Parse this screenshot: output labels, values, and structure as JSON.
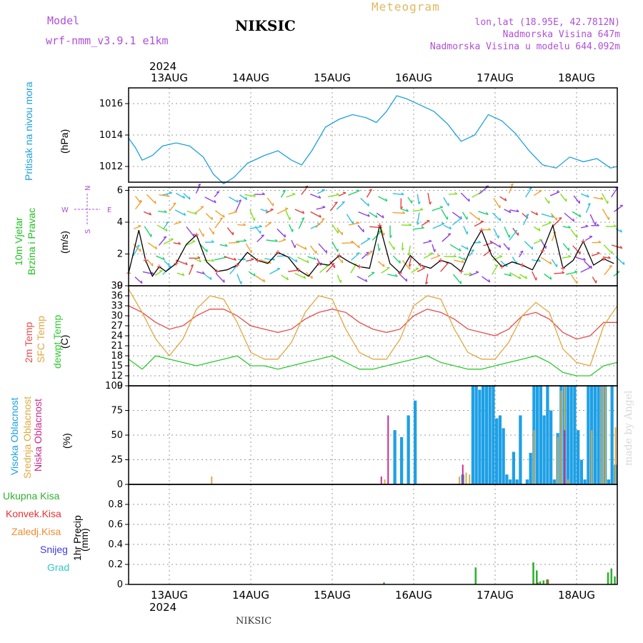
{
  "header": {
    "model_label": "Model",
    "model_name": "wrf-nmm_v3.9.1 e1km",
    "title": "NIKSIC",
    "product": "Meteogram",
    "coords": "lon,lat (18.95E, 42.7812N)",
    "elevation": "Nadmorska Visina 647m",
    "model_elevation": "Nadmorska Visina u modelu 644.092m"
  },
  "footer": {
    "station": "NIKSIC",
    "signature": "made by Angel"
  },
  "colors": {
    "pressure": "#1ea0dc",
    "temp2m": "#e84b4b",
    "sfc_temp": "#e0a840",
    "dewpoint": "#30c830",
    "high_cloud": "#1ea0e6",
    "mid_cloud": "#e0a840",
    "low_cloud": "#c8288c",
    "total_precip": "#30b030",
    "conv_precip": "#e83232",
    "frozen_precip": "#f08c30",
    "snow": "#3c3ce0",
    "hail": "#30c8c8",
    "wind_label": "#20c020",
    "wind_compass": "#b04fd6"
  },
  "time_axis": {
    "year": "2024",
    "days": [
      "13AUG",
      "14AUG",
      "15AUG",
      "16AUG",
      "17AUG",
      "18AUG"
    ],
    "start": "12 Aug 12:00",
    "end": "18 Aug 12:00"
  },
  "chart_data": [
    {
      "type": "line",
      "id": "pressure",
      "ylabel": "Pritisak na nivou mora",
      "unit": "(hPa)",
      "ylim": [
        1011.0,
        1017.0
      ],
      "yticks": [
        1012,
        1014,
        1016
      ],
      "x_hours": [
        0,
        2,
        4,
        7,
        10,
        14,
        18,
        22,
        25,
        28,
        31,
        35,
        40,
        44,
        48,
        51,
        54,
        58,
        62,
        66,
        70,
        73,
        76,
        79,
        82,
        86,
        90,
        94,
        98,
        102,
        106,
        110,
        114,
        118,
        122,
        126,
        130,
        134,
        138,
        142,
        144
      ],
      "series": [
        {
          "values": [
            1013.8,
            1013.2,
            1012.4,
            1012.7,
            1013.3,
            1013.5,
            1013.3,
            1012.6,
            1011.5,
            1010.9,
            1011.3,
            1012.2,
            1012.7,
            1013.0,
            1012.4,
            1012.1,
            1013.0,
            1014.5,
            1015.0,
            1015.3,
            1015.1,
            1014.8,
            1015.5,
            1016.5,
            1016.3,
            1015.9,
            1015.5,
            1014.7,
            1013.6,
            1014.0,
            1015.3,
            1014.9,
            1014.1,
            1013.0,
            1012.1,
            1011.9,
            1012.6,
            1012.3,
            1012.5,
            1011.9,
            1012.0
          ]
        }
      ]
    },
    {
      "type": "line",
      "id": "wind",
      "ylabel": "10m Vjetar Brzina i Pravac",
      "unit": "(m/s)",
      "compass": [
        "N",
        "W",
        "E",
        "S"
      ],
      "ylim": [
        0,
        6.2
      ],
      "yticks": [
        0,
        2,
        4,
        6
      ],
      "x_hours": [
        0,
        3,
        5,
        7,
        9,
        11,
        14,
        17,
        20,
        23,
        26,
        29,
        32,
        35,
        38,
        41,
        44,
        47,
        50,
        53,
        56,
        59,
        62,
        65,
        68,
        71,
        74,
        77,
        80,
        83,
        86,
        89,
        92,
        95,
        98,
        101,
        104,
        107,
        110,
        113,
        116,
        119,
        122,
        125,
        128,
        131,
        134,
        137,
        140,
        143
      ],
      "series": [
        {
          "values": [
            0.8,
            3.5,
            1.6,
            0.6,
            1.2,
            0.9,
            1.4,
            2.6,
            3.2,
            1.5,
            0.9,
            1.0,
            1.3,
            2.1,
            1.6,
            1.4,
            2.1,
            1.8,
            1.0,
            0.6,
            1.4,
            1.3,
            1.9,
            1.5,
            1.2,
            1.1,
            3.8,
            1.4,
            0.8,
            1.9,
            1.3,
            1.1,
            1.6,
            1.4,
            0.9,
            2.4,
            3.5,
            1.9,
            1.2,
            1.5,
            1.3,
            1.0,
            2.2,
            3.8,
            1.1,
            1.6,
            2.8,
            1.3,
            1.7,
            1.4
          ]
        }
      ]
    },
    {
      "type": "line",
      "id": "temperature",
      "ylabel": "2m Temp SFC Temp dewpt Temp",
      "unit": "(C)",
      "ylim": [
        9,
        39
      ],
      "yticks": [
        9,
        12,
        15,
        18,
        21,
        24,
        27,
        30,
        33,
        36,
        39
      ],
      "x_hours": [
        0,
        4,
        8,
        12,
        16,
        20,
        24,
        28,
        32,
        36,
        40,
        44,
        48,
        52,
        56,
        60,
        64,
        68,
        72,
        76,
        80,
        84,
        88,
        92,
        96,
        100,
        104,
        108,
        112,
        116,
        120,
        124,
        128,
        132,
        136,
        140,
        144
      ],
      "series": [
        {
          "name": "2m Temp",
          "values": [
            33,
            31,
            28,
            26,
            27,
            30,
            32,
            32,
            30,
            27,
            26,
            25,
            26,
            29,
            31,
            32,
            31,
            28,
            26,
            25,
            26,
            30,
            32,
            31,
            29,
            26,
            25,
            24,
            26,
            30,
            31,
            29,
            25,
            23,
            24,
            28,
            28
          ]
        },
        {
          "name": "SFC Temp",
          "values": [
            38,
            31,
            23,
            18,
            23,
            32,
            36,
            35,
            28,
            19,
            17,
            17,
            22,
            31,
            36,
            35,
            26,
            19,
            17,
            17,
            23,
            33,
            36,
            35,
            26,
            19,
            17,
            17,
            22,
            30,
            34,
            31,
            20,
            16,
            15,
            27,
            33
          ]
        },
        {
          "name": "dewpt Temp",
          "values": [
            17,
            14,
            18,
            17,
            16,
            15,
            16,
            17,
            18,
            15,
            15,
            14,
            15,
            16,
            17,
            18,
            16,
            14,
            14,
            15,
            16,
            17,
            18,
            16,
            15,
            14,
            14,
            15,
            16,
            17,
            18,
            16,
            13,
            12,
            12,
            15,
            16
          ]
        }
      ]
    },
    {
      "type": "bar",
      "id": "cloud",
      "ylabel": "Visoka Oblacnost Srednja Oblacnost Niska Oblacnost",
      "unit": "(%)",
      "ylim": [
        0,
        100
      ],
      "yticks": [
        0,
        25,
        50,
        75,
        100
      ],
      "bar_width_hours": 0.9,
      "series": [
        {
          "name": "Visoka Oblacnost",
          "points": [
            [
              78,
              55
            ],
            [
              80,
              48
            ],
            [
              82,
              70
            ],
            [
              84,
              85
            ],
            [
              98,
              10
            ],
            [
              101,
              100
            ],
            [
              102,
              100
            ],
            [
              103,
              96
            ],
            [
              104,
              100
            ],
            [
              105,
              100
            ],
            [
              106,
              100
            ],
            [
              107,
              100
            ],
            [
              108,
              67
            ],
            [
              109,
              70
            ],
            [
              110,
              57
            ],
            [
              111,
              10
            ],
            [
              112,
              5
            ],
            [
              113,
              33
            ],
            [
              114,
              5
            ],
            [
              115,
              70
            ],
            [
              117,
              5
            ],
            [
              118,
              32
            ],
            [
              119,
              100
            ],
            [
              120,
              100
            ],
            [
              121,
              100
            ],
            [
              122,
              70
            ],
            [
              123,
              100
            ],
            [
              124,
              75
            ],
            [
              125,
              5
            ],
            [
              126,
              52
            ],
            [
              127,
              100
            ],
            [
              128,
              100
            ],
            [
              129,
              100
            ],
            [
              130,
              100
            ],
            [
              131,
              100
            ],
            [
              132,
              55
            ],
            [
              133,
              25
            ],
            [
              134,
              5
            ],
            [
              135,
              100
            ],
            [
              136,
              100
            ],
            [
              137,
              100
            ],
            [
              138,
              100
            ],
            [
              139,
              100
            ],
            [
              140,
              100
            ],
            [
              141,
              5
            ],
            [
              142,
              100
            ],
            [
              143,
              20
            ]
          ]
        },
        {
          "name": "Srednja Oblacnost",
          "points": [
            [
              24,
              8
            ],
            [
              75,
              5
            ],
            [
              97,
              8
            ],
            [
              99,
              12
            ],
            [
              100,
              10
            ],
            [
              119,
              55
            ],
            [
              126,
              48
            ],
            [
              127,
              95
            ],
            [
              128,
              100
            ],
            [
              129,
              5
            ],
            [
              136,
              55
            ],
            [
              139,
              100
            ],
            [
              140,
              100
            ],
            [
              143,
              58
            ]
          ]
        },
        {
          "name": "Niska Oblacnost",
          "points": [
            [
              74,
              8
            ],
            [
              76,
              70
            ],
            [
              98,
              20
            ],
            [
              128,
              55
            ]
          ]
        }
      ]
    },
    {
      "type": "bar",
      "id": "precip",
      "ylabel": "1hr Precip",
      "unit": "(mm)",
      "ylim": [
        0,
        1.0
      ],
      "yticks": [
        0,
        0.2,
        0.4,
        0.6,
        0.8
      ],
      "bar_width_hours": 0.9,
      "series": [
        {
          "name": "Ukupna Kisa",
          "points": [
            [
              75,
              0.02
            ],
            [
              102,
              0.17
            ],
            [
              119,
              0.22
            ],
            [
              120,
              0.14
            ],
            [
              121,
              0.03
            ],
            [
              122,
              0.04
            ],
            [
              123,
              0.05
            ],
            [
              141,
              0.12
            ],
            [
              142,
              0.16
            ],
            [
              143,
              0.08
            ]
          ]
        },
        {
          "name": "Konvek.Kisa",
          "points": [
            [
              120,
              0.02
            ],
            [
              123,
              0.05
            ]
          ]
        },
        {
          "name": "Zaledj.Kisa",
          "points": [
            [
              119,
              0.01
            ]
          ]
        },
        {
          "name": "Snijeg",
          "points": []
        },
        {
          "name": "Grad",
          "points": []
        }
      ]
    }
  ]
}
